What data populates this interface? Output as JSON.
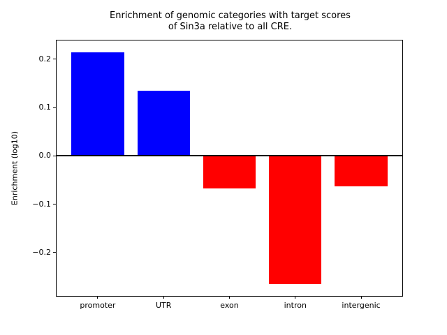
{
  "chart_data": {
    "type": "bar",
    "title": "Enrichment of genomic categories with target scores\nof Sin3a relative to all CRE.",
    "xlabel": "",
    "ylabel": "Enrichment (log10)",
    "categories": [
      "promoter",
      "UTR",
      "exon",
      "intron",
      "intergenic"
    ],
    "values": [
      0.215,
      0.135,
      -0.067,
      -0.266,
      -0.063
    ],
    "bar_colors": [
      "#0000ff",
      "#0000ff",
      "#ff0000",
      "#ff0000",
      "#ff0000"
    ],
    "positive_color": "#0000ff",
    "negative_color": "#ff0000",
    "bar_width": 0.8,
    "ylim": [
      -0.29,
      0.239
    ],
    "xlim": [
      -0.625,
      4.625
    ],
    "yticks": {
      "values": [
        0.2,
        0.1,
        0.0,
        -0.1,
        -0.2
      ],
      "labels": [
        "0.2",
        "0.1",
        "0.0",
        "−0.1",
        "−0.2"
      ]
    },
    "zero_line": {
      "color": "#000000",
      "width": 2
    },
    "grid": false,
    "legend": false,
    "background_color": "#ffffff",
    "axes_frame_color": "#000000"
  }
}
